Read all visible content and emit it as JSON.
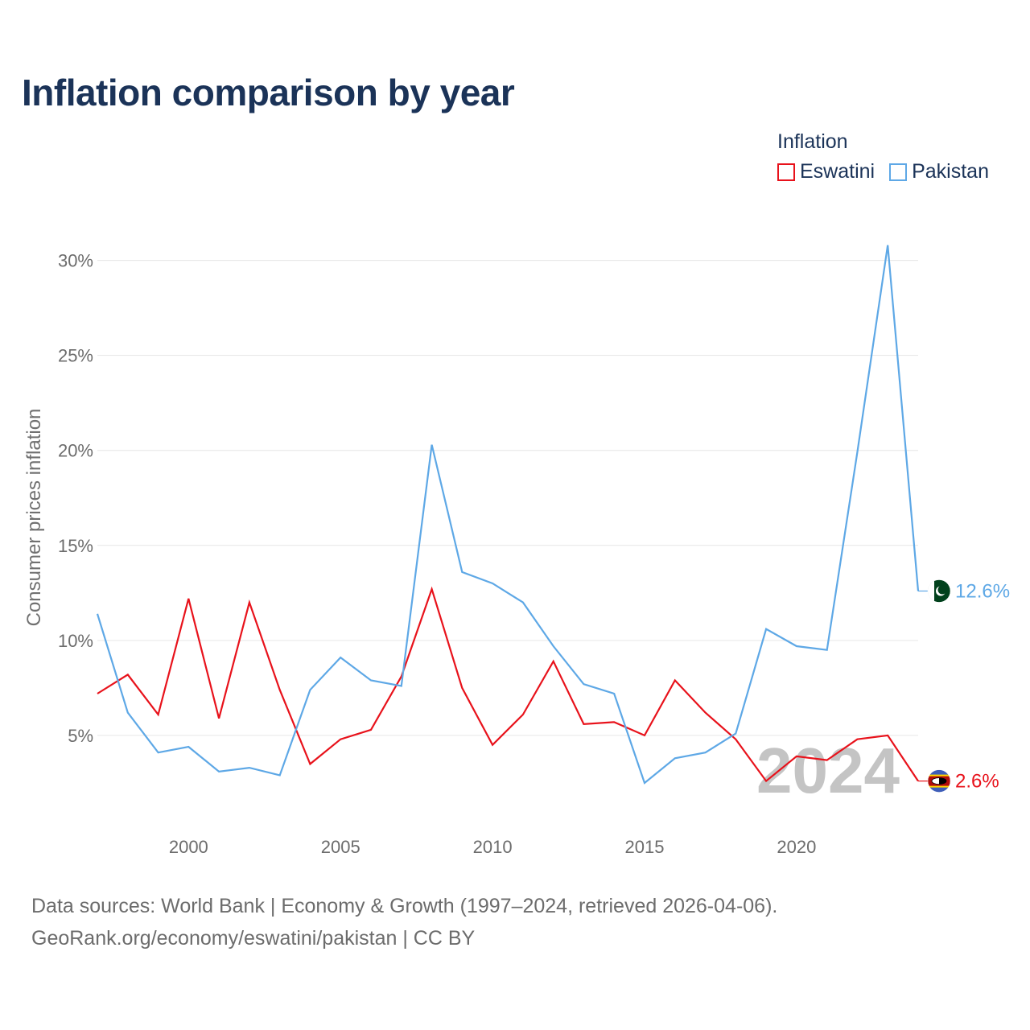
{
  "title": "Inflation comparison by year",
  "legend": {
    "title": "Inflation",
    "entries": [
      {
        "name": "Eswatini",
        "color": "#e8121b"
      },
      {
        "name": "Pakistan",
        "color": "#5ea8e6"
      }
    ]
  },
  "chart_data": {
    "type": "line",
    "title": "Inflation comparison by year",
    "xlabel": "",
    "ylabel": "Consumer prices inflation",
    "x": [
      1997,
      1998,
      1999,
      2000,
      2001,
      2002,
      2003,
      2004,
      2005,
      2006,
      2007,
      2008,
      2009,
      2010,
      2011,
      2012,
      2013,
      2014,
      2015,
      2016,
      2017,
      2018,
      2019,
      2020,
      2021,
      2022,
      2023,
      2024
    ],
    "xlim": [
      1997,
      2024
    ],
    "ylim": [
      0,
      31
    ],
    "x_ticks": [
      2000,
      2005,
      2010,
      2015,
      2020
    ],
    "y_ticks": [
      5,
      10,
      15,
      20,
      25,
      30
    ],
    "y_tick_labels": [
      "5%",
      "10%",
      "15%",
      "20%",
      "25%",
      "30%"
    ],
    "series": [
      {
        "name": "Eswatini",
        "color": "#e8121b",
        "values": [
          7.2,
          8.2,
          6.1,
          12.2,
          5.9,
          12.0,
          7.4,
          3.5,
          4.8,
          5.3,
          8.1,
          12.7,
          7.5,
          4.5,
          6.1,
          8.9,
          5.6,
          5.7,
          5.0,
          7.9,
          6.2,
          4.8,
          2.6,
          3.9,
          3.7,
          4.8,
          5.0,
          2.6
        ],
        "end_label": "2.6%"
      },
      {
        "name": "Pakistan",
        "color": "#5ea8e6",
        "values": [
          11.4,
          6.2,
          4.1,
          4.4,
          3.1,
          3.3,
          2.9,
          7.4,
          9.1,
          7.9,
          7.6,
          20.3,
          13.6,
          13.0,
          12.0,
          9.7,
          7.7,
          7.2,
          2.5,
          3.8,
          4.1,
          5.1,
          10.6,
          9.7,
          9.5,
          19.9,
          30.8,
          12.6
        ],
        "end_label": "12.6%"
      }
    ],
    "current_year_label": "2024",
    "annotations": [
      "2024"
    ]
  },
  "footer": {
    "line1": "Data sources: World Bank | Economy & Growth (1997–2024, retrieved 2026-04-06).",
    "line2": "GeoRank.org/economy/eswatini/pakistan | CC BY"
  }
}
